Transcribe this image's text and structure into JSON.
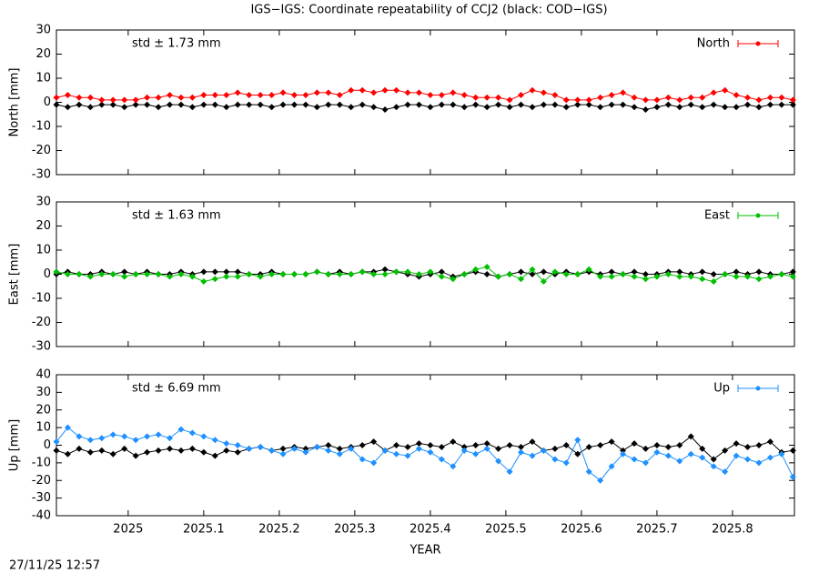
{
  "chart_data": [
    {
      "type": "line",
      "title": "IGS−IGS: Coordinate repeatability of CCJ2 (black: COD−IGS)",
      "ylabel": "North [mm]",
      "annotation": "std ± 1.73 mm",
      "xlim": [
        2024.905,
        2025.882
      ],
      "ylim": [
        -30,
        30
      ],
      "yticks": [
        -30,
        -20,
        -10,
        0,
        10,
        20,
        30
      ],
      "xticks": [
        2025,
        2025.1,
        2025.2,
        2025.3,
        2025.4,
        2025.5,
        2025.6,
        2025.7,
        2025.8
      ],
      "x": [
        2024.905,
        2024.92,
        2024.935,
        2024.95,
        2024.965,
        2024.98,
        2024.995,
        2025.01,
        2025.025,
        2025.04,
        2025.055,
        2025.07,
        2025.085,
        2025.1,
        2025.115,
        2025.13,
        2025.145,
        2025.16,
        2025.175,
        2025.19,
        2025.205,
        2025.22,
        2025.235,
        2025.25,
        2025.265,
        2025.28,
        2025.295,
        2025.31,
        2025.325,
        2025.34,
        2025.355,
        2025.37,
        2025.385,
        2025.4,
        2025.415,
        2025.43,
        2025.445,
        2025.46,
        2025.475,
        2025.49,
        2025.505,
        2025.52,
        2025.535,
        2025.55,
        2025.565,
        2025.58,
        2025.595,
        2025.61,
        2025.625,
        2025.64,
        2025.655,
        2025.67,
        2025.685,
        2025.7,
        2025.715,
        2025.73,
        2025.745,
        2025.76,
        2025.775,
        2025.79,
        2025.805,
        2025.82,
        2025.835,
        2025.85,
        2025.865,
        2025.88
      ],
      "series": [
        {
          "color": "#000000",
          "values": [
            -1,
            -2,
            -1,
            -2,
            -1,
            -1,
            -2,
            -1,
            -1,
            -2,
            -1,
            -1,
            -2,
            -1,
            -1,
            -2,
            -1,
            -1,
            -1,
            -2,
            -1,
            -1,
            -1,
            -2,
            -1,
            -1,
            -2,
            -1,
            -2,
            -3,
            -2,
            -1,
            -1,
            -2,
            -1,
            -1,
            -2,
            -1,
            -2,
            -1,
            -2,
            -1,
            -2,
            -1,
            -1,
            -2,
            -1,
            -1,
            -2,
            -1,
            -1,
            -2,
            -3,
            -2,
            -1,
            -2,
            -1,
            -2,
            -1,
            -2,
            -2,
            -1,
            -2,
            -1,
            -1,
            -1
          ]
        },
        {
          "name": "North",
          "color": "#ff0000",
          "values": [
            2,
            3,
            2,
            2,
            1,
            1,
            1,
            1,
            2,
            2,
            3,
            2,
            2,
            3,
            3,
            3,
            4,
            3,
            3,
            3,
            4,
            3,
            3,
            4,
            4,
            3,
            5,
            5,
            4,
            5,
            5,
            4,
            4,
            3,
            3,
            4,
            3,
            2,
            2,
            2,
            1,
            3,
            5,
            4,
            3,
            1,
            1,
            1,
            2,
            3,
            4,
            2,
            1,
            1,
            2,
            1,
            2,
            2,
            4,
            5,
            3,
            2,
            1,
            2,
            2,
            1
          ]
        }
      ]
    },
    {
      "type": "line",
      "ylabel": "East [mm]",
      "annotation": "std ± 1.63 mm",
      "xlim": [
        2024.905,
        2025.882
      ],
      "ylim": [
        -30,
        30
      ],
      "yticks": [
        -30,
        -20,
        -10,
        0,
        10,
        20,
        30
      ],
      "xticks": [
        2025,
        2025.1,
        2025.2,
        2025.3,
        2025.4,
        2025.5,
        2025.6,
        2025.7,
        2025.8
      ],
      "x": [
        2024.905,
        2024.92,
        2024.935,
        2024.95,
        2024.965,
        2024.98,
        2024.995,
        2025.01,
        2025.025,
        2025.04,
        2025.055,
        2025.07,
        2025.085,
        2025.1,
        2025.115,
        2025.13,
        2025.145,
        2025.16,
        2025.175,
        2025.19,
        2025.205,
        2025.22,
        2025.235,
        2025.25,
        2025.265,
        2025.28,
        2025.295,
        2025.31,
        2025.325,
        2025.34,
        2025.355,
        2025.37,
        2025.385,
        2025.4,
        2025.415,
        2025.43,
        2025.445,
        2025.46,
        2025.475,
        2025.49,
        2025.505,
        2025.52,
        2025.535,
        2025.55,
        2025.565,
        2025.58,
        2025.595,
        2025.61,
        2025.625,
        2025.64,
        2025.655,
        2025.67,
        2025.685,
        2025.7,
        2025.715,
        2025.73,
        2025.745,
        2025.76,
        2025.775,
        2025.79,
        2025.805,
        2025.82,
        2025.835,
        2025.85,
        2025.865,
        2025.88
      ],
      "series": [
        {
          "color": "#000000",
          "values": [
            0,
            1,
            0,
            0,
            1,
            0,
            1,
            0,
            1,
            0,
            0,
            1,
            0,
            1,
            1,
            1,
            1,
            0,
            0,
            1,
            0,
            0,
            0,
            1,
            0,
            1,
            0,
            1,
            1,
            2,
            1,
            0,
            -1,
            0,
            1,
            -1,
            0,
            1,
            0,
            -1,
            0,
            1,
            0,
            1,
            0,
            1,
            0,
            1,
            0,
            1,
            0,
            1,
            0,
            0,
            1,
            1,
            0,
            1,
            0,
            0,
            1,
            0,
            1,
            0,
            0,
            1
          ]
        },
        {
          "name": "East",
          "color": "#00c000",
          "values": [
            1,
            0,
            0,
            -1,
            0,
            0,
            -1,
            0,
            0,
            0,
            -1,
            0,
            -1,
            -3,
            -2,
            -1,
            -1,
            0,
            -1,
            0,
            0,
            0,
            0,
            1,
            0,
            0,
            0,
            1,
            0,
            0,
            1,
            1,
            0,
            1,
            -1,
            -2,
            0,
            2,
            3,
            -1,
            0,
            -2,
            2,
            -3,
            1,
            0,
            0,
            2,
            -1,
            -1,
            0,
            -1,
            -2,
            -1,
            0,
            -1,
            -1,
            -2,
            -3,
            0,
            -1,
            -1,
            -2,
            -1,
            0,
            -1
          ]
        }
      ]
    },
    {
      "type": "line",
      "ylabel": "Up [mm]",
      "xlabel": "YEAR",
      "annotation": "std ± 6.69 mm",
      "xlim": [
        2024.905,
        2025.882
      ],
      "ylim": [
        -40,
        40
      ],
      "yticks": [
        -40,
        -30,
        -20,
        -10,
        0,
        10,
        20,
        30,
        40
      ],
      "xticks": [
        2025,
        2025.1,
        2025.2,
        2025.3,
        2025.4,
        2025.5,
        2025.6,
        2025.7,
        2025.8
      ],
      "x": [
        2024.905,
        2024.92,
        2024.935,
        2024.95,
        2024.965,
        2024.98,
        2024.995,
        2025.01,
        2025.025,
        2025.04,
        2025.055,
        2025.07,
        2025.085,
        2025.1,
        2025.115,
        2025.13,
        2025.145,
        2025.16,
        2025.175,
        2025.19,
        2025.205,
        2025.22,
        2025.235,
        2025.25,
        2025.265,
        2025.28,
        2025.295,
        2025.31,
        2025.325,
        2025.34,
        2025.355,
        2025.37,
        2025.385,
        2025.4,
        2025.415,
        2025.43,
        2025.445,
        2025.46,
        2025.475,
        2025.49,
        2025.505,
        2025.52,
        2025.535,
        2025.55,
        2025.565,
        2025.58,
        2025.595,
        2025.61,
        2025.625,
        2025.64,
        2025.655,
        2025.67,
        2025.685,
        2025.7,
        2025.715,
        2025.73,
        2025.745,
        2025.76,
        2025.775,
        2025.79,
        2025.805,
        2025.82,
        2025.835,
        2025.85,
        2025.865,
        2025.88
      ],
      "series": [
        {
          "color": "#000000",
          "values": [
            -3,
            -5,
            -2,
            -4,
            -3,
            -5,
            -2,
            -6,
            -4,
            -3,
            -2,
            -3,
            -2,
            -4,
            -6,
            -3,
            -4,
            -2,
            -1,
            -3,
            -2,
            -1,
            -2,
            -1,
            0,
            -2,
            -1,
            0,
            2,
            -3,
            0,
            -1,
            1,
            0,
            -1,
            2,
            -1,
            0,
            1,
            -2,
            0,
            -1,
            2,
            -3,
            -2,
            0,
            -5,
            -1,
            0,
            2,
            -3,
            1,
            -2,
            0,
            -1,
            0,
            5,
            -2,
            -8,
            -3,
            1,
            -1,
            0,
            2,
            -4,
            -3
          ]
        },
        {
          "name": "Up",
          "color": "#1e90ff",
          "values": [
            2,
            10,
            5,
            3,
            4,
            6,
            5,
            3,
            5,
            6,
            4,
            9,
            7,
            5,
            3,
            1,
            0,
            -2,
            -1,
            -3,
            -5,
            -2,
            -4,
            -1,
            -3,
            -5,
            -2,
            -8,
            -10,
            -3,
            -5,
            -6,
            -2,
            -4,
            -8,
            -12,
            -3,
            -5,
            -2,
            -9,
            -15,
            -4,
            -6,
            -3,
            -8,
            -10,
            3,
            -15,
            -20,
            -12,
            -5,
            -8,
            -10,
            -4,
            -6,
            -9,
            -5,
            -7,
            -12,
            -15,
            -6,
            -8,
            -10,
            -7,
            -5,
            -18
          ]
        }
      ]
    }
  ],
  "timestamp": "27/11/25 12:57"
}
